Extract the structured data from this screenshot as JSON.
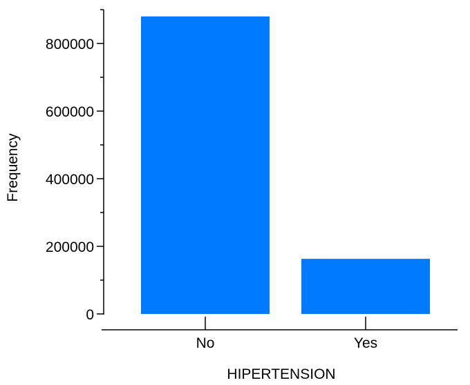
{
  "chart_data": {
    "type": "bar",
    "categories": [
      "No",
      "Yes"
    ],
    "values": [
      880000,
      163000
    ],
    "xlabel": "HIPERTENSION",
    "ylabel": "Frequency",
    "ylim": [
      0,
      900000
    ],
    "yticks": [
      0,
      200000,
      400000,
      600000,
      800000
    ],
    "ytick_labels": [
      "0",
      "200000",
      "400000",
      "600000",
      "800000"
    ],
    "grid": false,
    "bar_color": "#007bff",
    "axis_color": "#000000"
  }
}
